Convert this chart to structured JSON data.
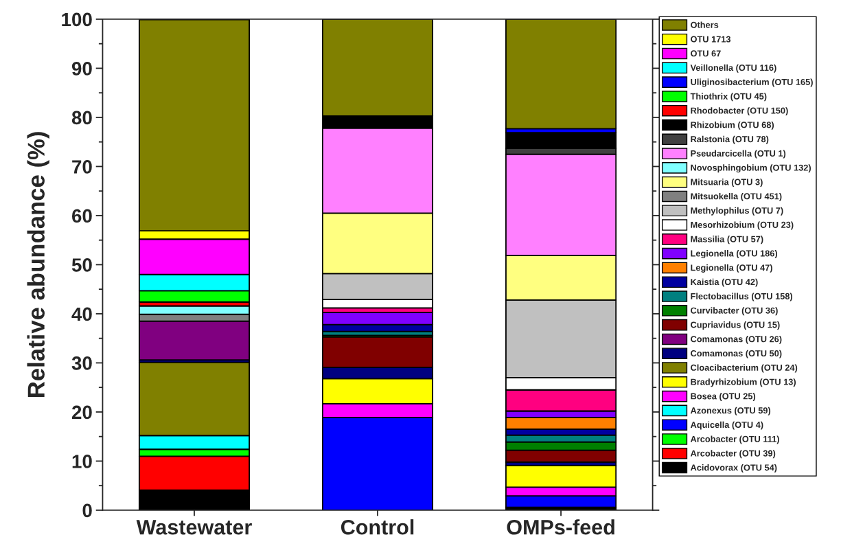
{
  "chart_data": {
    "type": "bar",
    "stacked": true,
    "ylabel": "Relative abundance (%)",
    "categories": [
      "Wastewater",
      "Control",
      "OMPs-feed"
    ],
    "ylim": [
      0,
      100
    ],
    "yticks": [
      0,
      10,
      20,
      30,
      40,
      50,
      60,
      70,
      80,
      90,
      100
    ],
    "grid": false,
    "legend": "right",
    "series": [
      {
        "name": "Acidovorax (OTU 54)",
        "color": "#000000",
        "values": [
          4.1,
          null,
          0.6
        ]
      },
      {
        "name": "Arcobacter (OTU 39)",
        "color": "#ff0000",
        "values": [
          6.9,
          null,
          null
        ]
      },
      {
        "name": "Arcobacter (OTU 111)",
        "color": "#00ff00",
        "values": [
          1.4,
          null,
          null
        ]
      },
      {
        "name": "Aquicella (OTU 4)",
        "color": "#0000ff",
        "values": [
          null,
          18.9,
          2.3
        ]
      },
      {
        "name": "Azonexus (OTU 59)",
        "color": "#00ffff",
        "values": [
          2.8,
          null,
          null
        ]
      },
      {
        "name": "Bosea (OTU 25)",
        "color": "#ff00ff",
        "values": [
          null,
          2.8,
          1.8
        ]
      },
      {
        "name": "Bradyrhizobium (OTU 13)",
        "color": "#ffff00",
        "values": [
          null,
          5.1,
          4.4
        ]
      },
      {
        "name": "Cloacibacterium (OTU 24)",
        "color": "#808000",
        "values": [
          14.9,
          null,
          null
        ]
      },
      {
        "name": "Comamonas (OTU 50)",
        "color": "#000080",
        "values": [
          0.5,
          2.3,
          0.7
        ]
      },
      {
        "name": "Comamonas (OTU 26)",
        "color": "#800080",
        "values": [
          7.9,
          null,
          null
        ]
      },
      {
        "name": "Cupriavidus (OTU 15)",
        "color": "#800000",
        "values": [
          null,
          6.2,
          2.4
        ]
      },
      {
        "name": "Curvibacter (OTU 36)",
        "color": "#008000",
        "values": [
          null,
          0.3,
          1.7
        ]
      },
      {
        "name": "Flectobacillus (OTU 158)",
        "color": "#008080",
        "values": [
          null,
          0.8,
          1.4
        ]
      },
      {
        "name": "Kaistia (OTU 42)",
        "color": "#0000a0",
        "values": [
          null,
          1.4,
          1.2
        ]
      },
      {
        "name": "Legionella (OTU 47)",
        "color": "#ff8000",
        "values": [
          null,
          null,
          2.4
        ]
      },
      {
        "name": "Legionella (OTU 186)",
        "color": "#8000ff",
        "values": [
          null,
          2.5,
          1.3
        ]
      },
      {
        "name": "Massilia (OTU 57)",
        "color": "#ff0080",
        "values": [
          null,
          0.9,
          4.3
        ]
      },
      {
        "name": "Mesorhizobium (OTU 23)",
        "color": "#ffffff",
        "values": [
          null,
          1.7,
          2.5
        ]
      },
      {
        "name": "Methylophilus (OTU 7)",
        "color": "#c0c0c0",
        "values": [
          null,
          5.3,
          15.8
        ]
      },
      {
        "name": "Mitsuokella (OTU 451)",
        "color": "#808080",
        "values": [
          1.4,
          null,
          null
        ]
      },
      {
        "name": "Mitsuaria (OTU 3)",
        "color": "#ffff80",
        "values": [
          null,
          12.3,
          9.1
        ]
      },
      {
        "name": "Novosphingobium (OTU 132)",
        "color": "#80ffff",
        "values": [
          1.7,
          null,
          null
        ]
      },
      {
        "name": "Pseudarcicella (OTU 1)",
        "color": "#ff80ff",
        "values": [
          null,
          17.3,
          20.6
        ]
      },
      {
        "name": "Ralstonia (OTU 78)",
        "color": "#404040",
        "values": [
          null,
          null,
          1.2
        ]
      },
      {
        "name": "Rhizobium (OTU 68)",
        "color": "#000000",
        "values": [
          null,
          2.5,
          3.2
        ]
      },
      {
        "name": "Rhodobacter (OTU 150)",
        "color": "#ff0000",
        "values": [
          0.8,
          null,
          null
        ]
      },
      {
        "name": "Thiothrix (OTU 45)",
        "color": "#00ff00",
        "values": [
          2.3,
          null,
          null
        ]
      },
      {
        "name": "Uliginosibacterium (OTU 165)",
        "color": "#0000ff",
        "values": [
          null,
          null,
          0.8
        ]
      },
      {
        "name": "Veillonella (OTU 116)",
        "color": "#00ffff",
        "values": [
          3.3,
          null,
          null
        ]
      },
      {
        "name": "OTU 67",
        "color": "#ff00ff",
        "values": [
          7.2,
          null,
          null
        ]
      },
      {
        "name": "OTU 1713",
        "color": "#ffff00",
        "values": [
          1.7,
          null,
          null
        ]
      },
      {
        "name": "Others",
        "color": "#808000",
        "values": [
          43.0,
          19.7,
          22.3
        ]
      }
    ]
  }
}
